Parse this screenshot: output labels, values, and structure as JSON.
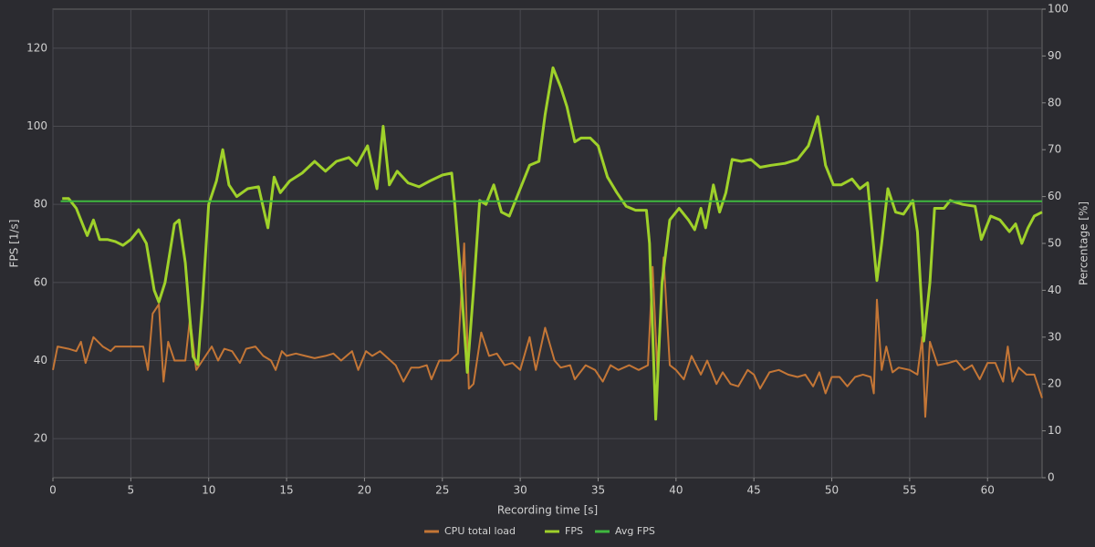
{
  "chart_data": {
    "type": "line",
    "xlabel": "Recording time [s]",
    "ylabel": "FPS [1/s]",
    "y2label": "Percentage [%]",
    "xlim": [
      0,
      63.5
    ],
    "xticks": [
      0,
      5,
      10,
      15,
      20,
      25,
      30,
      35,
      40,
      45,
      50,
      55,
      60
    ],
    "ylim": [
      10,
      130
    ],
    "yticks": [
      20,
      40,
      60,
      80,
      100,
      120
    ],
    "y2lim": [
      0,
      100
    ],
    "y2ticks": [
      0,
      10,
      20,
      30,
      40,
      50,
      60,
      70,
      80,
      90,
      100
    ],
    "grid": true,
    "legend": "bottom",
    "series": [
      {
        "name": "CPU total load",
        "color": "#c47636",
        "axis": "y2",
        "x": [
          0,
          0.3,
          1,
          1.5,
          1.8,
          2.1,
          2.6,
          3.2,
          3.7,
          4,
          4.5,
          5,
          5.8,
          6.1,
          6.4,
          6.8,
          7.1,
          7.4,
          7.8,
          8.5,
          8.8,
          9.2,
          9.6,
          10.2,
          10.6,
          11,
          11.5,
          12,
          12.4,
          13,
          13.5,
          14,
          14.3,
          14.7,
          15,
          15.6,
          16.2,
          16.8,
          17.5,
          18,
          18.5,
          19.2,
          19.6,
          20.1,
          20.5,
          21,
          21.5,
          22,
          22.5,
          23,
          23.5,
          24,
          24.3,
          24.8,
          25.5,
          26,
          26.4,
          26.7,
          27,
          27.5,
          28,
          28.5,
          29,
          29.5,
          30,
          30.6,
          31,
          31.6,
          32.2,
          32.6,
          33.2,
          33.5,
          34.2,
          34.8,
          35.3,
          35.8,
          36.3,
          37,
          37.6,
          38.2,
          38.5,
          38.8,
          39.2,
          39.6,
          40,
          40.5,
          41,
          41.6,
          42,
          42.6,
          43,
          43.5,
          44,
          44.6,
          45,
          45.4,
          46,
          46.6,
          47.2,
          47.8,
          48.3,
          48.8,
          49.2,
          49.6,
          50,
          50.5,
          51,
          51.5,
          52,
          52.5,
          52.7,
          52.9,
          53.2,
          53.5,
          53.9,
          54.3,
          55,
          55.5,
          55.8,
          56,
          56.3,
          56.8,
          57.5,
          58,
          58.5,
          59,
          59.5,
          60,
          60.5,
          61,
          61.3,
          61.6,
          62,
          62.5,
          63,
          63.5
        ],
        "values": [
          23,
          28,
          27.5,
          27,
          29,
          24.5,
          30,
          28,
          27,
          28,
          28,
          28,
          28,
          23,
          35,
          37,
          20.5,
          29,
          25,
          25,
          34,
          23,
          25,
          28,
          25,
          27.5,
          27,
          24.5,
          27.5,
          28,
          26,
          25,
          23,
          27,
          26,
          26.5,
          26,
          25.5,
          26,
          26.5,
          25,
          27,
          23,
          27,
          26,
          27,
          25.5,
          24,
          20.5,
          23.5,
          23.5,
          24,
          21,
          25,
          25,
          26.5,
          50,
          19,
          20,
          31,
          26,
          26.5,
          24,
          24.5,
          23,
          30,
          23,
          32,
          25,
          23.5,
          24,
          21,
          24,
          23,
          20.5,
          24,
          23,
          24,
          23,
          24,
          45,
          23,
          47,
          24,
          23,
          21,
          26,
          22,
          25,
          20,
          22.5,
          20,
          19.5,
          23,
          22,
          19,
          22.5,
          23,
          22,
          21.5,
          22,
          19.5,
          22.5,
          18,
          21.5,
          21.5,
          19.5,
          21.5,
          22,
          21.5,
          18,
          38,
          23,
          28,
          22.5,
          23.5,
          23,
          22,
          30,
          13,
          29,
          24,
          24.5,
          25,
          23,
          24,
          21,
          24.5,
          24.5,
          20.5,
          28,
          20.5,
          23.5,
          22,
          22,
          17
        ]
      },
      {
        "name": "FPS",
        "color": "#9fd12a",
        "x": [
          0.6,
          1,
          1.5,
          2,
          2.2,
          2.6,
          3,
          3.5,
          4,
          4.5,
          5,
          5.5,
          6,
          6.5,
          6.8,
          7.2,
          7.8,
          8.1,
          8.5,
          9,
          9.3,
          9.6,
          10,
          10.5,
          10.9,
          11.3,
          11.8,
          12.5,
          13.2,
          13.8,
          14.2,
          14.6,
          15.2,
          16,
          16.8,
          17.5,
          18.2,
          19,
          19.5,
          20.2,
          20.8,
          21.2,
          21.6,
          22.1,
          22.8,
          23.5,
          24.2,
          25,
          25.6,
          25.8,
          26.2,
          26.6,
          27,
          27.4,
          27.8,
          28.3,
          28.8,
          29.3,
          30,
          30.6,
          31.2,
          31.6,
          32.1,
          32.6,
          33,
          33.5,
          33.9,
          34.5,
          35,
          35.6,
          36.2,
          36.8,
          37.4,
          38.1,
          38.3,
          38.7,
          39.1,
          39.6,
          40.2,
          40.8,
          41.2,
          41.6,
          41.9,
          42.4,
          42.8,
          43.2,
          43.6,
          44.2,
          44.8,
          45.4,
          46.1,
          47,
          47.8,
          48.5,
          49.1,
          49.6,
          50.1,
          50.6,
          51.3,
          51.8,
          52.3,
          52.6,
          52.9,
          53.2,
          53.6,
          54.1,
          54.6,
          55.2,
          55.5,
          55.9,
          56.3,
          56.6,
          57.2,
          57.6,
          58.4,
          59.2,
          59.6,
          60.2,
          60.8,
          61.4,
          61.8,
          62.2,
          62.6,
          63,
          63.5
        ],
        "values": [
          81.5,
          81.5,
          79,
          74,
          72,
          76,
          71,
          71,
          70.5,
          69.5,
          71,
          73.5,
          70,
          58,
          55,
          60,
          75,
          76,
          65,
          41,
          39,
          55,
          80,
          86,
          94,
          85,
          82,
          84,
          84.5,
          74,
          87,
          83,
          86,
          88,
          91,
          88.5,
          91,
          92,
          90,
          95,
          84,
          100,
          85,
          88.5,
          85.5,
          84.5,
          86,
          87.5,
          88,
          80,
          60,
          37,
          58,
          81,
          80,
          85,
          78,
          77,
          84,
          90,
          91,
          103,
          115,
          110,
          105,
          96,
          97,
          97,
          95,
          87,
          83,
          79.5,
          78.5,
          78.5,
          70,
          25,
          60,
          76,
          79,
          76,
          73.5,
          79,
          74,
          85,
          78,
          83,
          91.5,
          91,
          91.5,
          89.5,
          90,
          90.5,
          91.5,
          95,
          102.5,
          90,
          85,
          85,
          86.5,
          84,
          85.5,
          73,
          60.5,
          70,
          84,
          78,
          77.5,
          81,
          73,
          45,
          60,
          79,
          79,
          81,
          80,
          79.5,
          71,
          77,
          76,
          73,
          75,
          70,
          74,
          77,
          78
        ]
      },
      {
        "name": "Avg FPS",
        "color": "#3fb83f",
        "x": [
          0.5,
          63.5
        ],
        "values": [
          80.8,
          80.8
        ]
      }
    ]
  }
}
